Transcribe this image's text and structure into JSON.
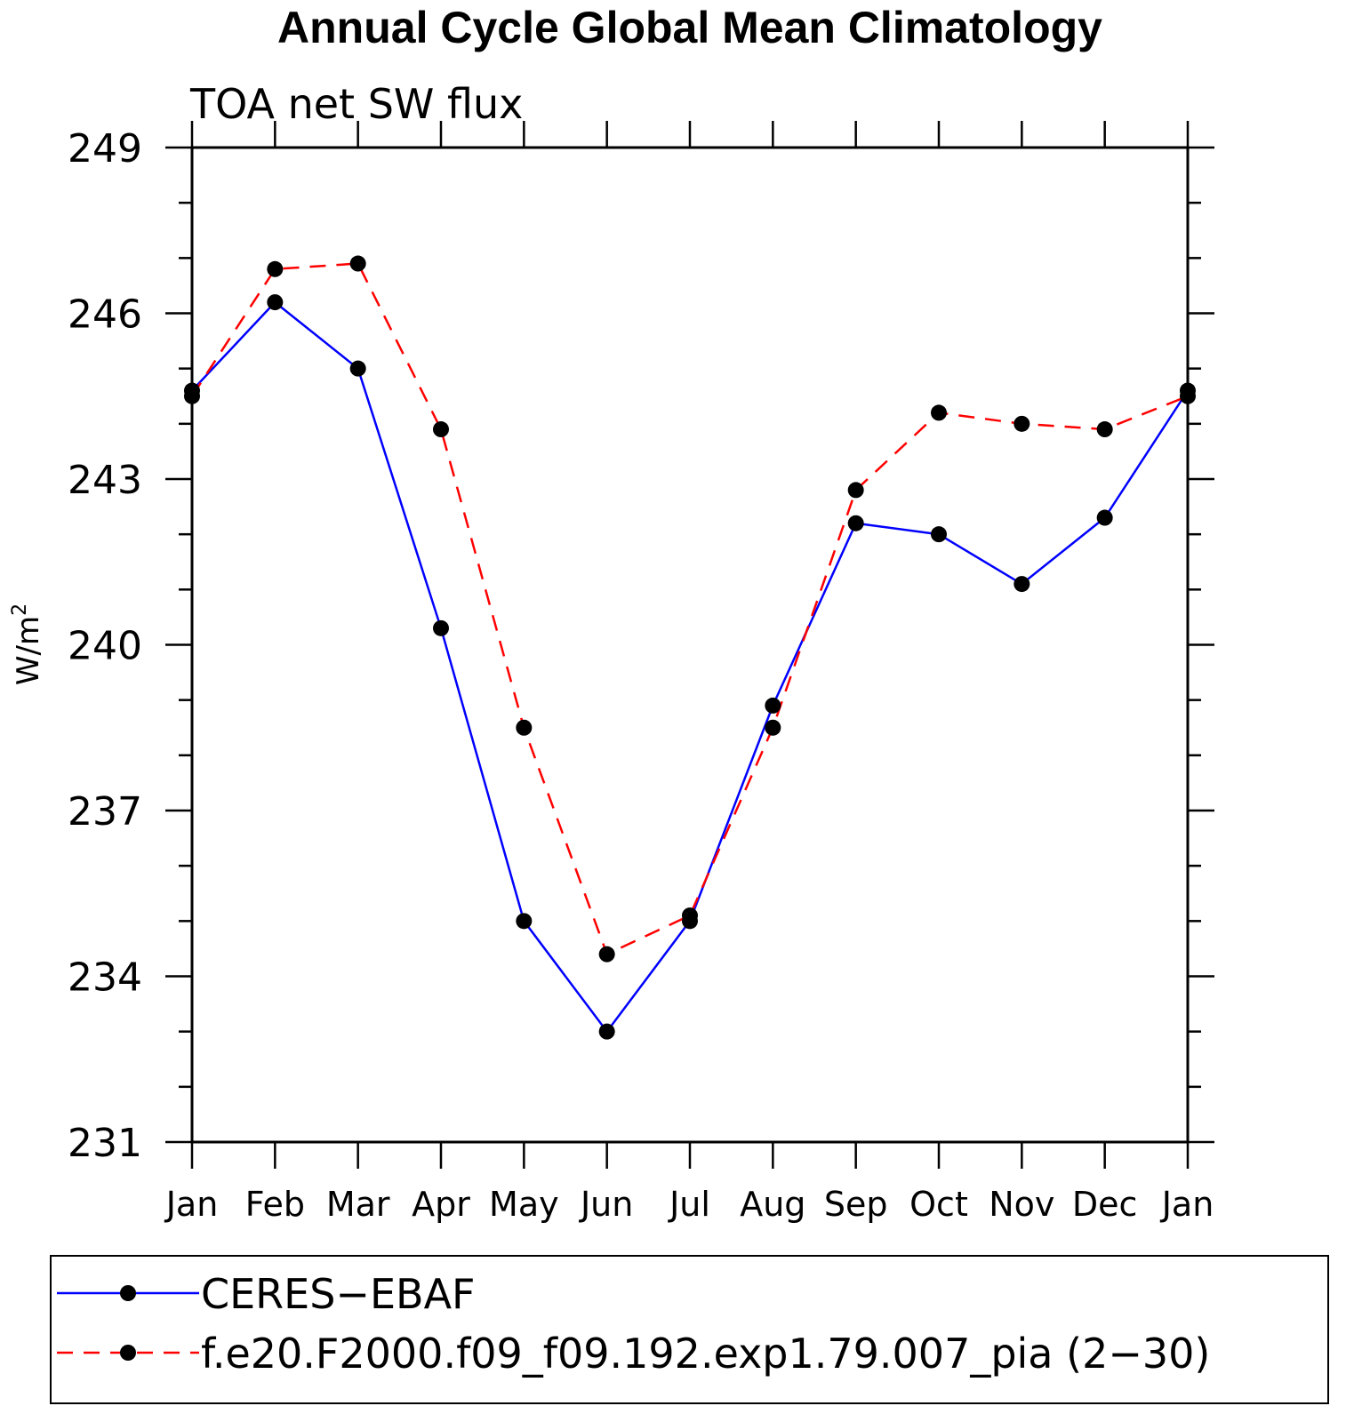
{
  "chart_data": {
    "type": "line",
    "title": "Annual Cycle Global Mean Climatology",
    "subtitle": "TOA net SW flux",
    "ylabel": "W/m",
    "ylabel_superscript": "2",
    "xlabel": "",
    "categories": [
      "Jan",
      "Feb",
      "Mar",
      "Apr",
      "May",
      "Jun",
      "Jul",
      "Aug",
      "Sep",
      "Oct",
      "Nov",
      "Dec",
      "Jan"
    ],
    "ylim": [
      231,
      249
    ],
    "yticks": [
      231,
      234,
      237,
      240,
      243,
      246,
      249
    ],
    "y_minor_step": 1,
    "grid": false,
    "legend_position": "bottom",
    "series": [
      {
        "name": "CERES−EBAF",
        "color": "#0000ff",
        "line_style": "solid",
        "marker": "filled-circle",
        "values": [
          244.6,
          246.2,
          245.0,
          240.3,
          235.0,
          233.0,
          235.0,
          238.9,
          242.2,
          242.0,
          241.1,
          242.3,
          244.6
        ]
      },
      {
        "name": "f.e20.F2000.f09_f09.192.exp1.79.007_pia (2−30)",
        "color": "#ff0000",
        "line_style": "dashed",
        "marker": "filled-circle",
        "values": [
          244.5,
          246.8,
          246.9,
          243.9,
          238.5,
          234.4,
          235.1,
          238.5,
          242.8,
          244.2,
          244.0,
          243.9,
          244.5
        ]
      }
    ]
  }
}
